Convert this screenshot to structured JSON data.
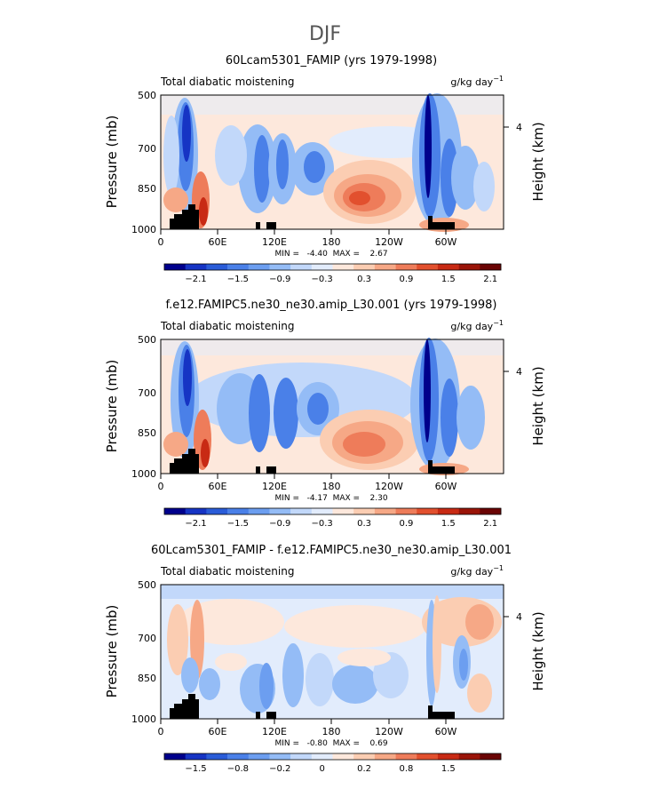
{
  "figure": {
    "season": "DJF"
  },
  "chart_data": [
    {
      "type": "heatmap",
      "title": "60Lcam5301_FAMIP (yrs 1979-1998)",
      "field": "Total diabatic moistening",
      "units": "g/kg day",
      "units_exp": "−1",
      "ylabel": "Pressure (mb)",
      "ylabel_right": "Height (km)",
      "yticks": [
        "500",
        "700",
        "850",
        "1000"
      ],
      "yticks_right": [
        "4"
      ],
      "xticks": [
        "0",
        "60E",
        "120E",
        "180",
        "120W",
        "60W"
      ],
      "stats": "MIN =   -4.40  MAX =    2.67",
      "colorbar_labels": [
        "−2.1",
        "−1.5",
        "−0.9",
        "−0.3",
        "0.3",
        "0.9",
        "1.5",
        "2.1"
      ]
    },
    {
      "type": "heatmap",
      "title": "f.e12.FAMIPC5.ne30_ne30.amip_L30.001 (yrs 1979-1998)",
      "field": "Total diabatic moistening",
      "units": "g/kg day",
      "units_exp": "−1",
      "ylabel": "Pressure (mb)",
      "ylabel_right": "Height (km)",
      "yticks": [
        "500",
        "700",
        "850",
        "1000"
      ],
      "yticks_right": [
        "4"
      ],
      "xticks": [
        "0",
        "60E",
        "120E",
        "180",
        "120W",
        "60W"
      ],
      "stats": "MIN =   -4.17  MAX =    2.30",
      "colorbar_labels": [
        "−2.1",
        "−1.5",
        "−0.9",
        "−0.3",
        "0.3",
        "0.9",
        "1.5",
        "2.1"
      ]
    },
    {
      "type": "heatmap",
      "title": "60Lcam5301_FAMIP - f.e12.FAMIPC5.ne30_ne30.amip_L30.001",
      "field": "Total diabatic moistening",
      "units": "g/kg day",
      "units_exp": "−1",
      "ylabel": "Pressure (mb)",
      "ylabel_right": "Height (km)",
      "yticks": [
        "500",
        "700",
        "850",
        "1000"
      ],
      "yticks_right": [
        "4"
      ],
      "xticks": [
        "0",
        "60E",
        "120E",
        "180",
        "120W",
        "60W"
      ],
      "stats": "MIN =   -0.80  MAX =    0.69",
      "colorbar_labels": [
        "−1.5",
        "−0.8",
        "−0.2",
        "0",
        "0.2",
        "0.8",
        "1.5"
      ]
    }
  ],
  "colors": {
    "scale": [
      "#00008c",
      "#1634c4",
      "#2a5cd8",
      "#4a80e8",
      "#6c9ef0",
      "#94bcf6",
      "#c2d8fa",
      "#e2ecfc",
      "#fde8dc",
      "#fbcdb2",
      "#f6a886",
      "#ee7c5a",
      "#e2502e",
      "#c82a14",
      "#9a1408",
      "#6a0404"
    ],
    "terrain": "#000000"
  }
}
